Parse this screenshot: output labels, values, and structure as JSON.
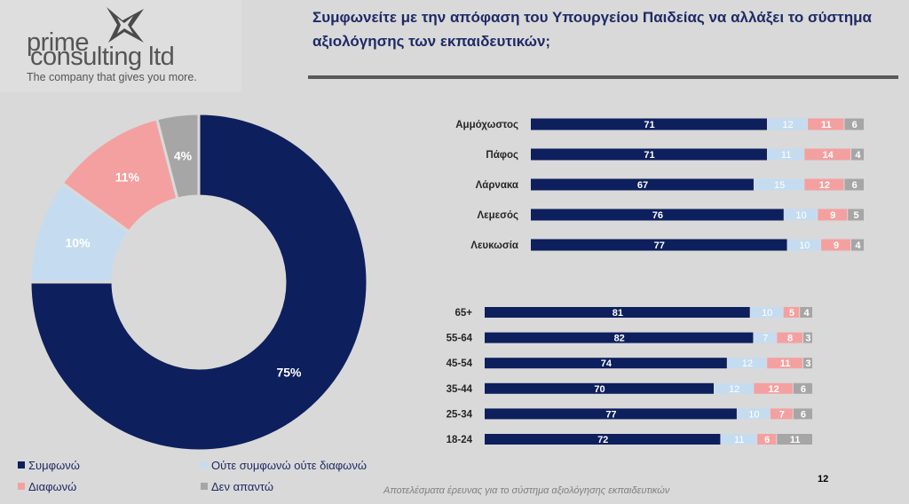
{
  "logo": {
    "line1": "prime",
    "line2": "consulting ltd",
    "tagline": "The company that gives you more."
  },
  "title": "Συμφωνείτε με την απόφαση του Υπουργείου Παιδείας να αλλάξει το σύστημα αξιολόγησης των εκπαιδευτικών;",
  "colors": {
    "agree": "#0d1f5c",
    "neutral": "#c5dcf0",
    "disagree": "#f4a0a0",
    "no_answer": "#a6a6a6"
  },
  "legend": [
    {
      "key": "agree",
      "label": "Συμφωνώ"
    },
    {
      "key": "neutral",
      "label": "Ούτε συμφωνώ ούτε διαφωνώ"
    },
    {
      "key": "disagree",
      "label": "Διαφωνώ"
    },
    {
      "key": "no_answer",
      "label": "Δεν απαντώ"
    }
  ],
  "chart_data": [
    {
      "type": "pie",
      "style": "donut",
      "categories": [
        "Συμφωνώ",
        "Ούτε συμφωνώ ούτε διαφωνώ",
        "Διαφωνώ",
        "Δεν απαντώ"
      ],
      "values": [
        75,
        10,
        11,
        4
      ],
      "labels": [
        "75%",
        "10%",
        "11%",
        "4%"
      ]
    },
    {
      "type": "bar",
      "orientation": "horizontal",
      "stacked": true,
      "categories": [
        "Αμμόχωστος",
        "Πάφος",
        "Λάρνακα",
        "Λεμεσός",
        "Λευκωσία"
      ],
      "series": [
        {
          "name": "Συμφωνώ",
          "values": [
            71,
            71,
            67,
            76,
            77
          ]
        },
        {
          "name": "Ούτε συμφωνώ ούτε διαφωνώ",
          "values": [
            12,
            11,
            15,
            10,
            10
          ]
        },
        {
          "name": "Διαφωνώ",
          "values": [
            11,
            14,
            12,
            9,
            9
          ]
        },
        {
          "name": "Δεν απαντώ",
          "values": [
            6,
            4,
            6,
            5,
            4
          ]
        }
      ]
    },
    {
      "type": "bar",
      "orientation": "horizontal",
      "stacked": true,
      "categories": [
        "65+",
        "55-64",
        "45-54",
        "35-44",
        "25-34",
        "18-24"
      ],
      "series": [
        {
          "name": "Συμφωνώ",
          "values": [
            81,
            82,
            74,
            70,
            77,
            72
          ]
        },
        {
          "name": "Ούτε συμφωνώ ούτε διαφωνώ",
          "values": [
            10,
            7,
            12,
            12,
            10,
            11
          ]
        },
        {
          "name": "Διαφωνώ",
          "values": [
            5,
            8,
            11,
            12,
            7,
            6
          ]
        },
        {
          "name": "Δεν απαντώ",
          "values": [
            4,
            3,
            3,
            6,
            6,
            11
          ]
        }
      ]
    }
  ],
  "footer": {
    "caption": "Αποτελέσματα έρευνας για το σύστημα αξιολόγησης εκπαιδευτικών",
    "page": "12"
  }
}
